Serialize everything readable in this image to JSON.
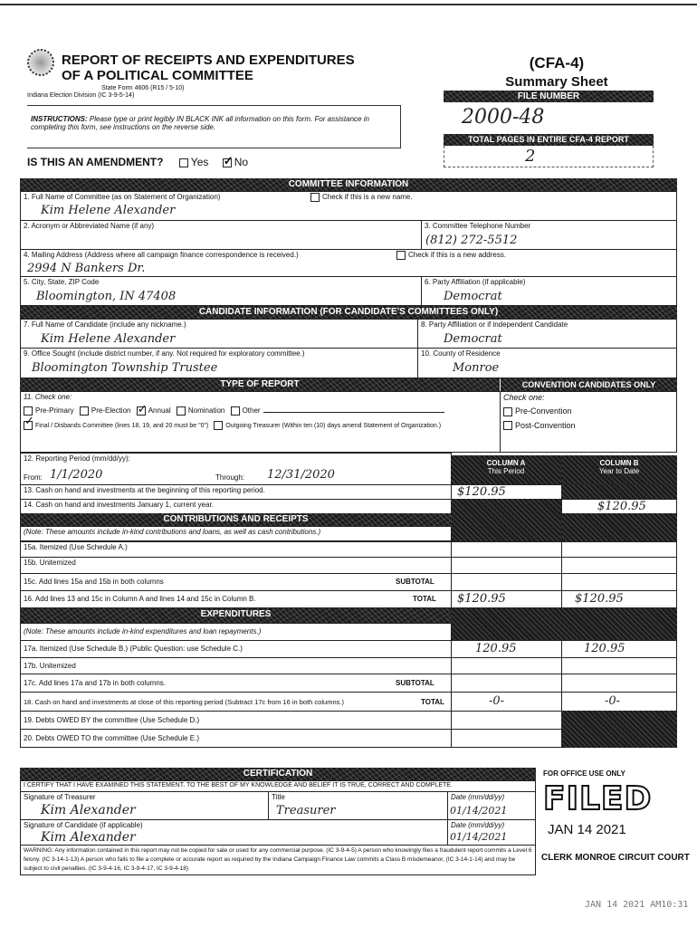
{
  "header": {
    "title_line1": "REPORT OF RECEIPTS AND EXPENDITURES",
    "title_line2": "OF A POLITICAL COMMITTEE",
    "state_form": "State Form 4606 (R15 / 5-10)",
    "division": "Indiana Election Division (IC 3-9-5-14)",
    "form_code": "(CFA-4)",
    "subtitle": "Summary Sheet",
    "file_number_label": "FILE NUMBER",
    "file_number": "2000-48",
    "total_pages_label": "TOTAL PAGES IN ENTIRE CFA-4 REPORT",
    "total_pages": "2",
    "instructions_bold": "INSTRUCTIONS:",
    "instructions": "Please type or print legibly IN BLACK INK all information on this form. For assistance in completing this form, see instructions on the reverse side.",
    "amendment_q": "IS THIS AN AMENDMENT?",
    "yes": "Yes",
    "no": "No",
    "amendment_value": "No"
  },
  "committee": {
    "bar": "COMMITTEE INFORMATION",
    "l1": "1. Full Name of Committee (as on Statement of Organization)",
    "new_name": "Check if this is a new name.",
    "v1": "Kim Helene Alexander",
    "l2": "2. Acronym or Abbreviated Name (if any)",
    "l3": "3. Committee Telephone Number",
    "v3": "(812) 272-5512",
    "l4": "4. Mailing Address (Address where all campaign finance correspondence is received.)",
    "new_addr": "Check if this is a new address.",
    "v4": "2994 N Bankers Dr.",
    "l5": "5. City, State, ZIP Code",
    "v5": "Bloomington, IN   47408",
    "l6": "6. Party Affiliation (if applicable)",
    "v6": "Democrat"
  },
  "candidate": {
    "bar": "CANDIDATE INFORMATION (For Candidate's Committees Only)",
    "l7": "7. Full Name of Candidate (include any nickname.)",
    "v7": "Kim Helene Alexander",
    "l8": "8. Party Affiliation or if independent Candidate",
    "v8": "Democrat",
    "l9": "9. Office Sought (include district number, if any. Not required for exploratory committee.)",
    "v9": "Bloomington Township Trustee",
    "l10": "10. County of Residence",
    "v10": "Monroe"
  },
  "report_type": {
    "bar": "TYPE OF REPORT",
    "conv_bar": "CONVENTION CANDIDATES ONLY",
    "l11": "11. Check one:",
    "options": [
      "Pre-Primary",
      "Pre-Election",
      "Annual",
      "Nomination",
      "Other"
    ],
    "checked": [
      "Annual",
      "Final / Disbands Committee"
    ],
    "final": "Final / Disbands Committee (lines 18, 19, and 20 must be \"0\")",
    "outgoing": "Outgoing Treasurer (Within ten (10) days amend Statement of Organization.)",
    "conv_check": "Check one:",
    "pre_conv": "Pre-Convention",
    "post_conv": "Post-Convention",
    "l12": "12. Reporting Period (mm/dd/yy):",
    "from_label": "From:",
    "from": "1/1/2020",
    "through_label": "Through:",
    "through": "12/31/2020",
    "colA": "COLUMN A",
    "colA_sub": "This Period",
    "colB": "COLUMN B",
    "colB_sub": "Year to Date"
  },
  "lines": {
    "l13": "13. Cash on hand and investments at the beginning of this reporting period.",
    "a13": "$120.95",
    "l14": "14. Cash on hand and investments January 1, current year.",
    "b14": "$120.95",
    "contrib_bar": "CONTRIBUTIONS AND RECEIPTS",
    "contrib_note": "(Note: These amounts include in-kind contributions and loans, as well as cash contributions.)",
    "l15a": "15a. Itemized (Use Schedule A.)",
    "l15b": "15b. Unitemized",
    "l15c": "15c. Add lines 15a and 15b in both columns",
    "subtotal": "SUBTOTAL",
    "total": "TOTAL",
    "l16": "16. Add lines 13 and 15c in Column A and lines 14 and 15c in Column B.",
    "a16": "$120.95",
    "b16": "$120.95",
    "exp_bar": "EXPENDITURES",
    "exp_note": "(Note: These amounts include in-kind expenditures and loan repayments.)",
    "l17a": "17a. Itemized (Use Schedule B.) (Public Question: use Schedule C.)",
    "a17a": "120.95",
    "b17a": "120.95",
    "l17b": "17b. Unitemized",
    "l17c": "17c. Add lines 17a and 17b in both columns.",
    "l18": "18. Cash on hand and investments at close of this reporting period (Subtract 17c from 16 in both columns.)",
    "a18": "-0-",
    "b18": "-0-",
    "l19": "19. Debts OWED BY the committee (Use Schedule D.)",
    "l20": "20. Debts OWED TO the committee (Use Schedule E.)"
  },
  "cert": {
    "bar": "CERTIFICATION",
    "statement": "I CERTIFY THAT I HAVE EXAMINED THIS STATEMENT. TO THE BEST OF MY KNOWLEDGE AND BELIEF IT IS TRUE, CORRECT AND COMPLETE.",
    "sig_t": "Signature of Treasurer",
    "sig_t_v": "Kim Alexander",
    "title": "Title",
    "title_v": "Treasurer",
    "date": "Date (mm/dd/yy)",
    "date_t": "01/14/2021",
    "sig_c": "Signature of Candidate (if applicable)",
    "sig_c_v": "Kim Alexander",
    "date_c": "01/14/2021",
    "warning": "WARNING: Any information contained in this report may not be copied for sale or used for any commercial purpose. (IC 3-9-4-5) A person who knowingly files a fraudulent report commits a Level 6 felony. (IC 3-14-1-13) A person who fails to file a complete or accurate report as required by the Indiana Campaign Finance Law commits a Class B misdemeanor, (IC 3-14-1-14) and may be subject to civil penalties. (IC 3-9-4-16, IC 3-9-4-17, IC 3-9-4-18)"
  },
  "stamps": {
    "office": "FOR OFFICE USE ONLY",
    "filed": "FILED",
    "filed_date": "JAN 14 2021",
    "clerk": "CLERK MONROE CIRCUIT COURT",
    "received": "JAN 14 2021 AM10:31"
  }
}
